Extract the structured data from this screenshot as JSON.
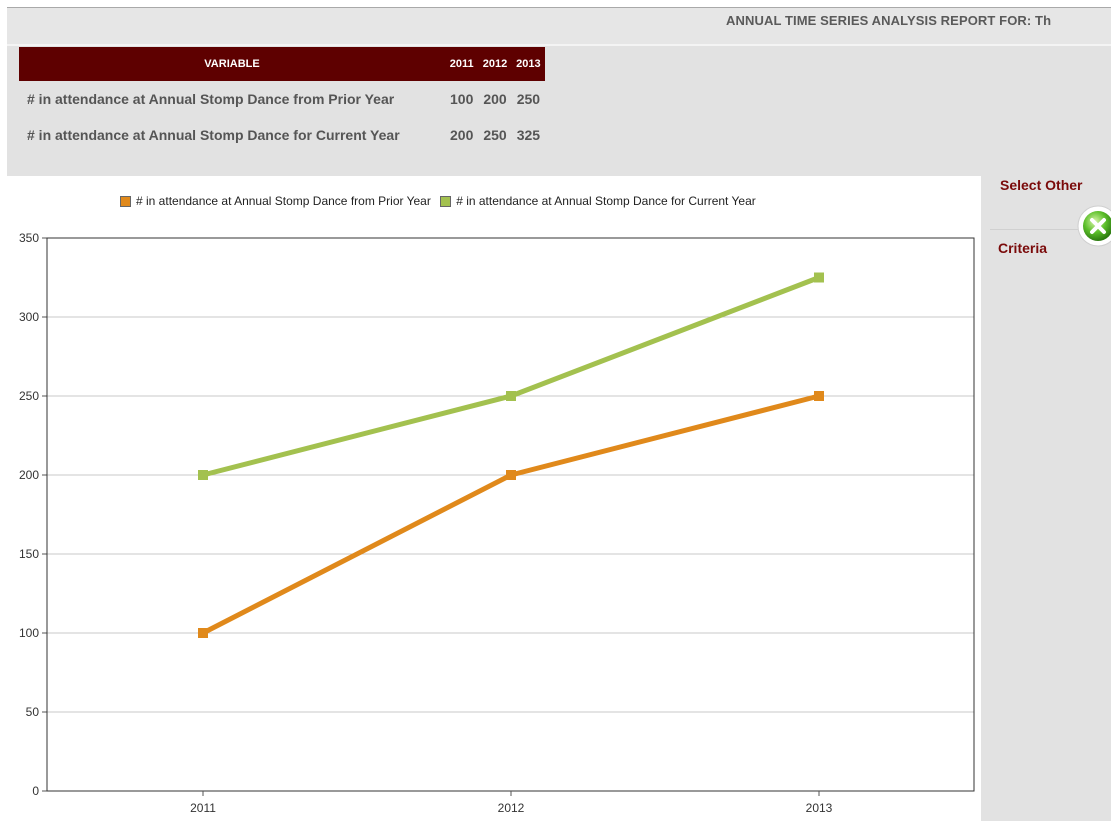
{
  "header": {
    "title": "ANNUAL TIME SERIES ANALYSIS REPORT FOR: Th"
  },
  "table": {
    "columns": [
      "VARIABLE",
      "2011",
      "2012",
      "2013"
    ],
    "rows": [
      {
        "label": "# in attendance at Annual Stomp Dance from Prior Year",
        "values": [
          "100",
          "200",
          "250"
        ]
      },
      {
        "label": "# in attendance at Annual Stomp Dance for Current Year",
        "values": [
          "200",
          "250",
          "325"
        ]
      }
    ]
  },
  "side": {
    "select_label": "Select Other",
    "criteria_label": "Criteria",
    "close_icon": "close-icon"
  },
  "colors": {
    "table_header": "#5e0000",
    "link": "#7a0a0a",
    "series_prior": "#e0891b",
    "series_current": "#a3c14f"
  },
  "chart_data": {
    "type": "line",
    "categories": [
      "2011",
      "2012",
      "2013"
    ],
    "series": [
      {
        "name": "# in attendance at Annual Stomp Dance from Prior Year",
        "values": [
          100,
          200,
          250
        ],
        "color": "#e0891b"
      },
      {
        "name": "# in attendance at Annual Stomp Dance for Current Year",
        "values": [
          200,
          250,
          325
        ],
        "color": "#a3c14f"
      }
    ],
    "yticks": [
      "0",
      "50",
      "100",
      "150",
      "200",
      "250",
      "300",
      "350"
    ],
    "ylim": [
      0,
      350
    ],
    "grid": true,
    "legend_position": "top"
  }
}
